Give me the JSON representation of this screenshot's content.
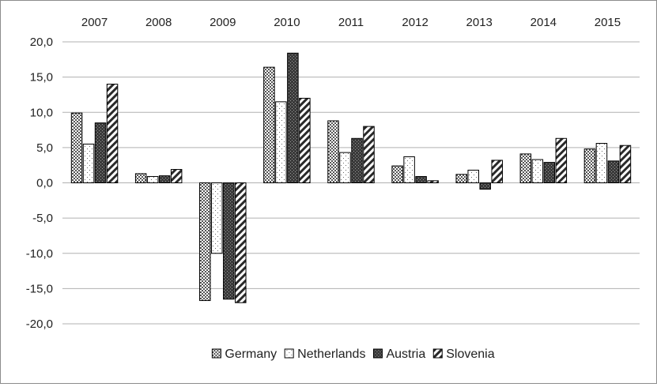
{
  "chart_data": {
    "type": "bar",
    "categories": [
      "2007",
      "2008",
      "2009",
      "2010",
      "2011",
      "2012",
      "2013",
      "2014",
      "2015"
    ],
    "series": [
      {
        "name": "Germany",
        "pattern": "dots",
        "values": [
          9.9,
          1.3,
          -16.7,
          16.4,
          8.8,
          2.4,
          1.2,
          4.1,
          4.8
        ]
      },
      {
        "name": "Netherlands",
        "pattern": "sparse",
        "values": [
          5.5,
          0.9,
          -10.0,
          11.5,
          4.3,
          3.7,
          1.8,
          3.3,
          5.6
        ]
      },
      {
        "name": "Austria",
        "pattern": "dark",
        "values": [
          8.5,
          1.0,
          -16.5,
          18.4,
          6.3,
          0.9,
          -0.9,
          2.9,
          3.1
        ]
      },
      {
        "name": "Slovenia",
        "pattern": "hatch",
        "values": [
          14.0,
          1.9,
          -17.0,
          12.0,
          8.0,
          0.3,
          3.2,
          6.3,
          5.3
        ]
      }
    ],
    "ylim": [
      -20,
      20
    ],
    "yticks": [
      "20,0",
      "15,0",
      "10,0",
      "5,0",
      "0,0",
      "-5,0",
      "-10,0",
      "-15,0",
      "-20,0"
    ],
    "ytick_values": [
      20,
      15,
      10,
      5,
      0,
      -5,
      -10,
      -15,
      -20
    ],
    "grid": true,
    "x_labels_position": "top",
    "legend_position": "bottom",
    "colors": {
      "gridline": "#b0b0b0",
      "bar_stroke": "#000000",
      "frame": "#8c8c8c"
    }
  }
}
